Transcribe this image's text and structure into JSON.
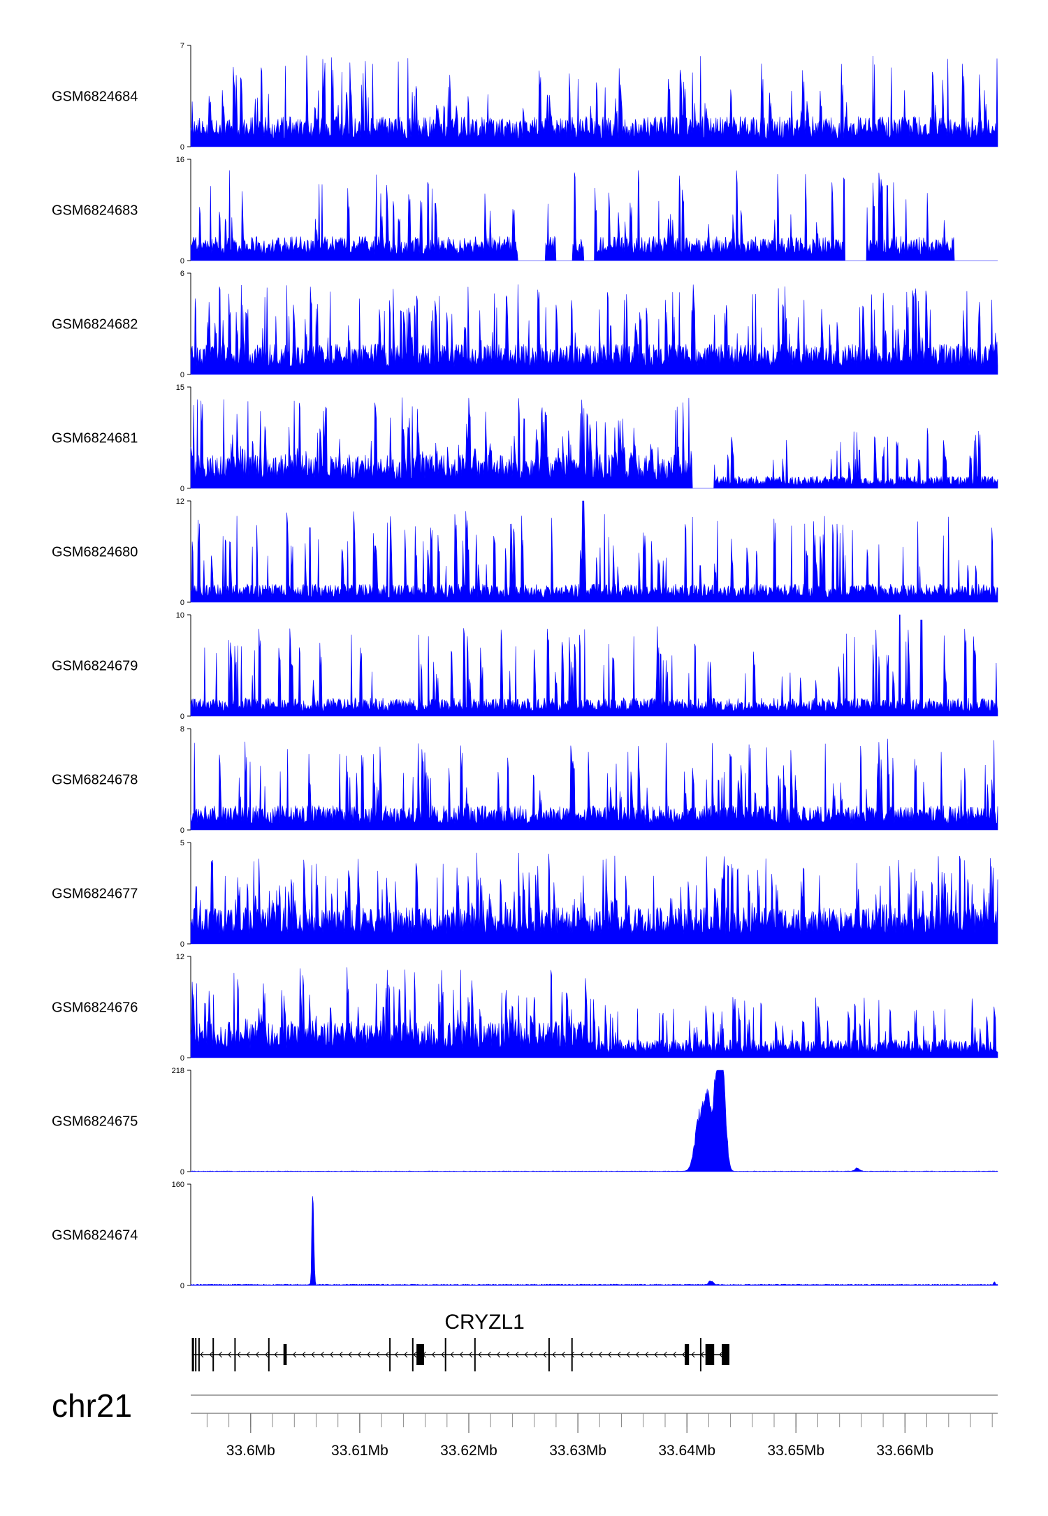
{
  "chart_data": {
    "type": "area",
    "title": "",
    "chromosome": "chr21",
    "xlim": [
      33.5945,
      33.6685
    ],
    "x_unit": "Mb",
    "x_ticks": [
      33.6,
      33.61,
      33.62,
      33.63,
      33.64,
      33.65,
      33.66
    ],
    "x_tick_labels": [
      "33.6Mb",
      "33.61Mb",
      "33.62Mb",
      "33.63Mb",
      "33.64Mb",
      "33.65Mb",
      "33.66Mb"
    ],
    "series_color": "#0000ff",
    "tracks": [
      {
        "name": "GSM6824684",
        "ylim": [
          0,
          7
        ],
        "ymax_label": "7",
        "ymin_label": "0",
        "profile": "sparse",
        "base": 0.25,
        "peak_prob": 0.5,
        "width": 1,
        "seed": 684,
        "gaps": []
      },
      {
        "name": "GSM6824683",
        "ylim": [
          0,
          16
        ],
        "ymax_label": "16",
        "ymin_label": "0",
        "profile": "sparse-gappy",
        "base": 0.2,
        "peak_prob": 0.35,
        "width": 1,
        "seed": 683,
        "gaps": [
          [
            33.6245,
            33.627
          ],
          [
            33.628,
            33.6295
          ],
          [
            33.6305,
            33.6315
          ],
          [
            33.6545,
            33.6565
          ],
          [
            33.6645,
            33.6685
          ]
        ]
      },
      {
        "name": "GSM6824682",
        "ylim": [
          0,
          6
        ],
        "ymax_label": "6",
        "ymin_label": "0",
        "profile": "sparse",
        "base": 0.25,
        "peak_prob": 0.5,
        "width": 1,
        "seed": 682,
        "gaps": []
      },
      {
        "name": "GSM6824681",
        "ylim": [
          0,
          15
        ],
        "ymax_label": "15",
        "ymin_label": "0",
        "profile": "dense-step",
        "base": 0.28,
        "base_after": 0.1,
        "step_at": 33.6405,
        "peak_prob": 0.7,
        "width": 1,
        "seed": 681,
        "gaps": [
          [
            33.6405,
            33.6425
          ]
        ]
      },
      {
        "name": "GSM6824680",
        "ylim": [
          0,
          12
        ],
        "ymax_label": "12",
        "ymin_label": "0",
        "profile": "sparse",
        "base": 0.15,
        "peak_prob": 0.5,
        "width": 1,
        "seed": 680,
        "gaps": [],
        "spikes": [
          [
            33.6305,
            1.0
          ]
        ]
      },
      {
        "name": "GSM6824679",
        "ylim": [
          0,
          10
        ],
        "ymax_label": "10",
        "ymin_label": "0",
        "profile": "sparse",
        "base": 0.15,
        "peak_prob": 0.45,
        "width": 1,
        "seed": 679,
        "gaps": [],
        "spikes": [
          [
            33.6595,
            1.0
          ],
          [
            33.6615,
            0.95
          ]
        ]
      },
      {
        "name": "GSM6824678",
        "ylim": [
          0,
          8
        ],
        "ymax_label": "8",
        "ymin_label": "0",
        "profile": "sparse",
        "base": 0.2,
        "peak_prob": 0.5,
        "width": 1,
        "seed": 678,
        "gaps": []
      },
      {
        "name": "GSM6824677",
        "ylim": [
          0,
          5
        ],
        "ymax_label": "5",
        "ymin_label": "0",
        "profile": "dense",
        "base": 0.3,
        "peak_prob": 0.65,
        "width": 1,
        "seed": 677,
        "gaps": []
      },
      {
        "name": "GSM6824676",
        "ylim": [
          0,
          12
        ],
        "ymax_label": "12",
        "ymin_label": "0",
        "profile": "dense-step",
        "base": 0.3,
        "base_after": 0.15,
        "step_at": 33.631,
        "peak_prob": 0.7,
        "width": 1,
        "seed": 676,
        "gaps": []
      },
      {
        "name": "GSM6824675",
        "ylim": [
          0,
          218
        ],
        "ymax_label": "218",
        "ymin_label": "0",
        "profile": "peak",
        "base": 0.005,
        "width": 1,
        "seed": 675,
        "peaks": [
          [
            33.6412,
            0.55,
            0.0006
          ],
          [
            33.6428,
            1.0,
            0.0005
          ],
          [
            33.6433,
            0.8,
            0.0004
          ],
          [
            33.6419,
            0.6,
            0.0004
          ],
          [
            33.6556,
            0.03,
            0.0003
          ]
        ]
      },
      {
        "name": "GSM6824674",
        "ylim": [
          0,
          160
        ],
        "ymax_label": "160",
        "ymin_label": "0",
        "profile": "peak",
        "base": 0.01,
        "width": 1,
        "seed": 674,
        "peaks": [
          [
            33.6057,
            1.0,
            0.00012
          ],
          [
            33.6422,
            0.035,
            0.0003
          ],
          [
            33.6682,
            0.03,
            0.0001
          ]
        ]
      }
    ],
    "gene": {
      "name": "CRYZL1",
      "strand": "-",
      "start": 33.5946,
      "end": 33.6439,
      "exons": [
        [
          33.5946,
          33.5948
        ],
        [
          33.5949,
          33.595
        ],
        [
          33.5952,
          33.5953
        ],
        [
          33.5965,
          33.5966
        ],
        [
          33.5985,
          33.5986
        ],
        [
          33.6016,
          33.6017
        ],
        [
          33.603,
          33.6033
        ],
        [
          33.6127,
          33.6128
        ],
        [
          33.6148,
          33.6149
        ],
        [
          33.6152,
          33.6159
        ],
        [
          33.6178,
          33.6179
        ],
        [
          33.6205,
          33.6206
        ],
        [
          33.6273,
          33.6274
        ],
        [
          33.6294,
          33.6295
        ],
        [
          33.6398,
          33.6402
        ],
        [
          33.6412,
          33.6413
        ],
        [
          33.6417,
          33.6425
        ],
        [
          33.6432,
          33.6439
        ]
      ]
    }
  }
}
